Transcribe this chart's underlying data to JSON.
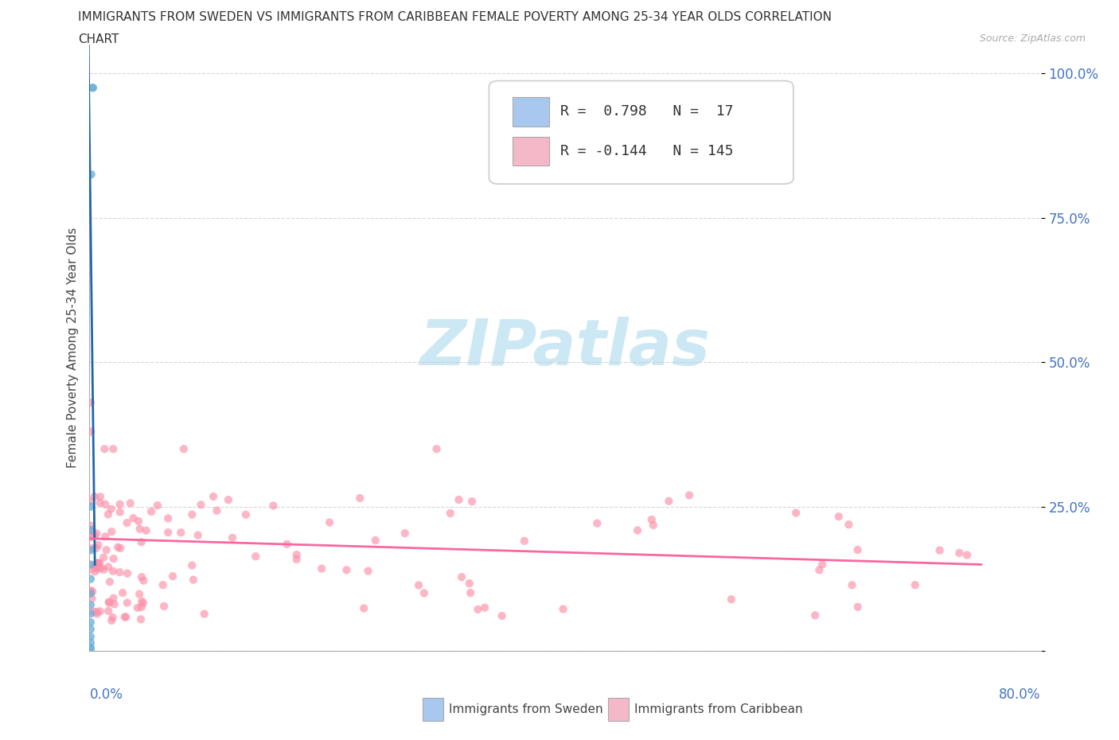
{
  "title_line1": "IMMIGRANTS FROM SWEDEN VS IMMIGRANTS FROM CARIBBEAN FEMALE POVERTY AMONG 25-34 YEAR OLDS CORRELATION",
  "title_line2": "CHART",
  "source_text": "Source: ZipAtlas.com",
  "ylabel": "Female Poverty Among 25-34 Year Olds",
  "sweden_color": "#6baed6",
  "caribbean_color": "#fc8fa8",
  "sweden_line_color": "#2166ac",
  "caribbean_line_color": "#f768a1",
  "sweden_legend_color": "#a8c8f0",
  "caribbean_legend_color": "#f5b8c8",
  "watermark_text": "ZIPatlas",
  "watermark_color": "#cce8f4",
  "background_color": "#ffffff",
  "tick_color": "#4472c4",
  "R_sweden": 0.798,
  "N_sweden": 17,
  "R_caribbean": -0.144,
  "N_caribbean": 145,
  "xlim": [
    0.0,
    0.8
  ],
  "ylim": [
    0.0,
    1.05
  ],
  "y_ticks": [
    0.0,
    0.25,
    0.5,
    0.75,
    1.0
  ],
  "y_tick_labels": [
    "",
    "25.0%",
    "50.0%",
    "75.0%",
    "100.0%"
  ]
}
